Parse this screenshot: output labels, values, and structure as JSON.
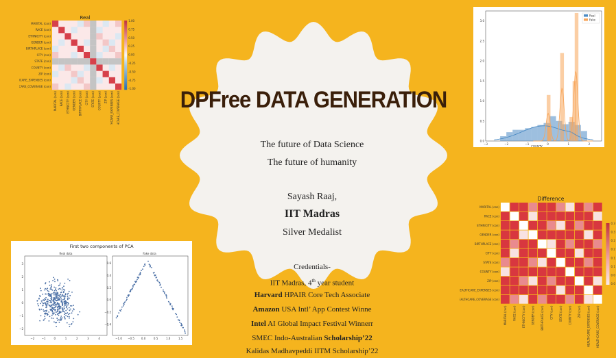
{
  "title": "DPFree DATA GENERATION",
  "tagline_1": "The future of Data Science",
  "tagline_2": "The future of humanity",
  "author_name": "Sayash Raaj,",
  "institute": "IIT Madras",
  "medal": "Silver Medalist",
  "credentials": {
    "heading": "Credentials-",
    "line1_pre": "IIT Madras, 4",
    "line1_sup": "th",
    "line1_post": " year student",
    "line2_bold": "Harvard",
    "line2_rest": " HPAIR Core Tech Associate",
    "line3_bold": "Amazon",
    "line3_rest": " USA Intl’ App Contest Winne",
    "line4_bold": "Intel",
    "line4_rest": " AI Global Impact Festival Winnerr",
    "line5_rest": "SMEC Indo-Australian ",
    "line5_bold": "Scholarship’22",
    "line6": "Kalidas Madhavpeddi IITM Scholarship’22"
  },
  "figures": {
    "real_corr": {
      "title": "Real",
      "labels": [
        "MARITAL (con)",
        "RACE (con)",
        "ETHNICITY (con)",
        "GENDER (con)",
        "BIRTHPLACE (con)",
        "CITY (con)",
        "STATE (con)",
        "COUNTY (con)",
        "ZIP (con)",
        "HEALTHCARE_EXPENSES (con)",
        "HEALTHCARE_COVERAGE (con)"
      ],
      "colorbar": [
        "1.00",
        "0.75",
        "0.50",
        "0.25",
        "0.00",
        "-0.25",
        "-0.50",
        "-0.75",
        "-1.00"
      ]
    },
    "county_hist": {
      "xlabel": "COUNTY",
      "legend": [
        "Real",
        "Fake"
      ],
      "yticks": [
        "3.0",
        "2.5",
        "2.0",
        "1.5",
        "1.0",
        "0.5",
        "0.0"
      ],
      "xticks": [
        "−3",
        "−2",
        "−1",
        "0",
        "1",
        "2"
      ],
      "colors": {
        "real": "#4C8BC4",
        "fake": "#F7A55A"
      }
    },
    "difference": {
      "title": "Difference",
      "labels": [
        "MARITAL (con)",
        "RACE (con)",
        "ETHNICITY (con)",
        "GENDER (con)",
        "BIRTHPLACE (con)",
        "CITY (con)",
        "STATE (con)",
        "COUNTY (con)",
        "ZIP (con)",
        "HEALTHCARE_EXPENSES (con)",
        "HEALTHCARE_COVERAGE (con)"
      ],
      "colorbar": [
        "0.3",
        "0.3",
        "0.2",
        "0.2",
        "0.1",
        "0.1",
        "0.0",
        "0.0"
      ]
    },
    "pca": {
      "title": "First two components of PCA",
      "left_title": "Real data",
      "right_title": "Fake data",
      "left_xticks": [
        "−2",
        "−1",
        "0",
        "1",
        "2",
        "3",
        "4"
      ],
      "left_yticks": [
        "3",
        "2",
        "1",
        "0",
        "−1",
        "−2"
      ],
      "right_xticks": [
        "−1.0",
        "−0.5",
        "0.0",
        "0.5",
        "1.0",
        "1.5"
      ],
      "right_yticks": [
        "0.6",
        "0.4",
        "0.2",
        "0.0",
        "−0.2",
        "−0.4"
      ]
    }
  }
}
